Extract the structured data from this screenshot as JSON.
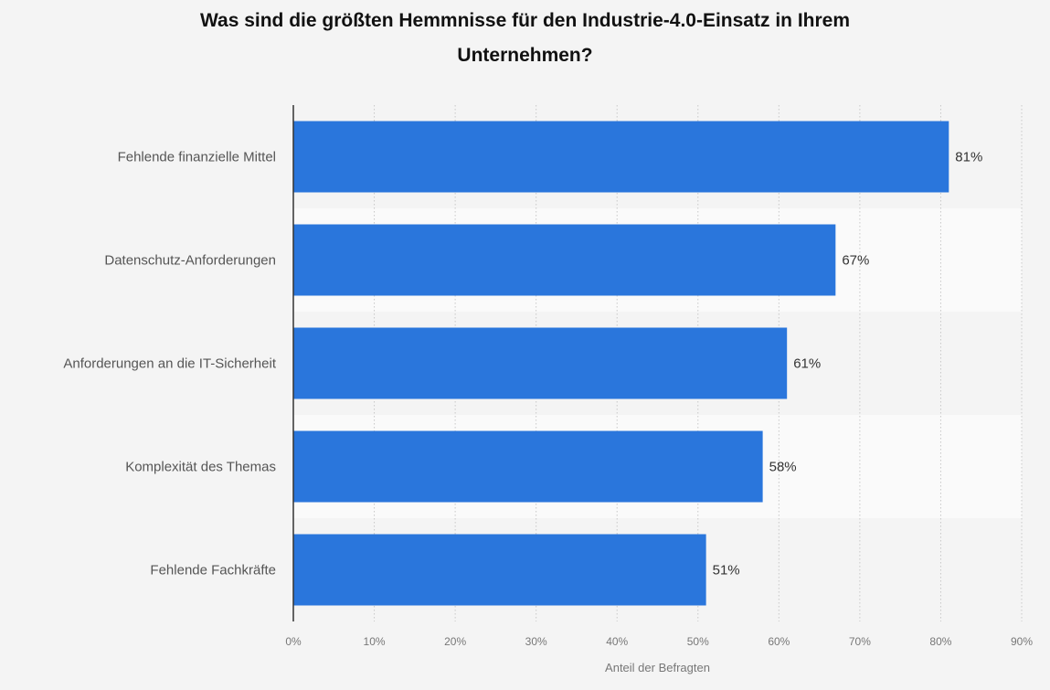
{
  "title_lines": [
    "Was sind die größten Hemmnisse für den Industrie-4.0-Einsatz in Ihrem",
    "Unternehmen?"
  ],
  "chart_data": {
    "type": "bar",
    "orientation": "horizontal",
    "title": "Was sind die größten Hemmnisse für den Industrie-4.0-Einsatz in Ihrem Unternehmen?",
    "categories": [
      "Fehlende finanzielle Mittel",
      "Datenschutz-Anforderungen",
      "Anforderungen an die IT-Sicherheit",
      "Komplexität des Themas",
      "Fehlende Fachkräfte"
    ],
    "values": [
      81,
      67,
      61,
      58,
      51
    ],
    "value_labels": [
      "81%",
      "67%",
      "61%",
      "58%",
      "51%"
    ],
    "xlabel": "Anteil der Befragten",
    "xlim": [
      0,
      90
    ],
    "xticks": [
      0,
      10,
      20,
      30,
      40,
      50,
      60,
      70,
      80,
      90
    ],
    "xtick_labels": [
      "0%",
      "10%",
      "20%",
      "30%",
      "40%",
      "50%",
      "60%",
      "70%",
      "80%",
      "90%"
    ],
    "grid": true,
    "bar_color": "#2a76dc",
    "band_colors": [
      "#f4f4f4",
      "#fafafa"
    ]
  }
}
